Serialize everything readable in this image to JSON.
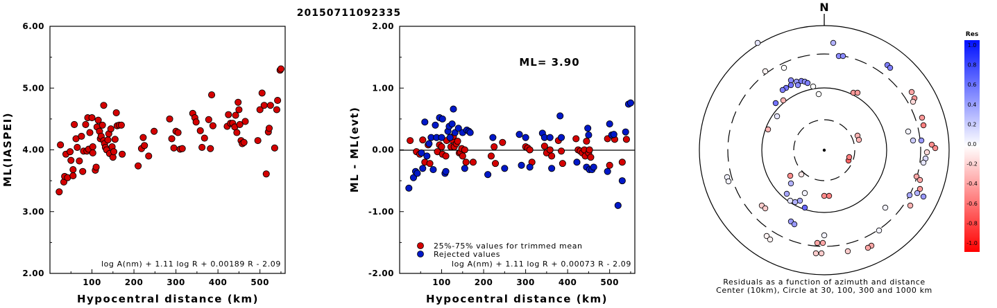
{
  "title": "20150711092335",
  "colors": {
    "red": "#d40000",
    "blue": "#0018c8",
    "frame": "#000000"
  },
  "left_panel": {
    "ylabel": "ML(IASPEI)",
    "xlabel": "Hypocentral distance (km)",
    "formula": "log A(nm) + 1.11 log R + 0.00189 R - 2.09",
    "xticks": [
      "100",
      "200",
      "300",
      "400",
      "500"
    ],
    "yticks": [
      "2.00",
      "3.00",
      "4.00",
      "5.00",
      "6.00"
    ]
  },
  "middle_panel": {
    "ylabel": "ML - ML(evt)",
    "xlabel": "Hypocentral distance (km)",
    "ml_text": "ML= 3.90",
    "legend_kept": "25%-75% values for trimmed mean",
    "legend_rejected": "Rejected values",
    "formula": "log A(nm) + 1.11 log R + 0.00073 R - 2.09",
    "xticks": [
      "100",
      "200",
      "300",
      "400",
      "500"
    ],
    "yticks": [
      "-2.00",
      "-1.00",
      "0.00",
      "1.00",
      "2.00"
    ]
  },
  "polar_panel": {
    "north_label": "N",
    "caption_line1": "Residuals as a function of azimuth and distance",
    "caption_line2": "Center (10km), Circle at 30, 100, 300 and 1000 km"
  },
  "colorbar": {
    "title": "Res",
    "labels": [
      "1.0",
      "0.8",
      "0.6",
      "0.4",
      "0.2",
      "0.0",
      "-0.2",
      "-0.4",
      "-0.6",
      "-0.8",
      "-1.0"
    ]
  },
  "chart_data": [
    {
      "type": "scatter",
      "title": "20150711092335",
      "xlabel": "Hypocentral distance (km)",
      "ylabel": "ML(IASPEI)",
      "xlim": [
        0,
        560
      ],
      "ylim": [
        2.0,
        6.0
      ],
      "series": [
        {
          "color": "#d40000",
          "points": [
            [
              22,
              3.32
            ],
            [
              25,
              4.08
            ],
            [
              33,
              3.48
            ],
            [
              35,
              3.57
            ],
            [
              38,
              3.93
            ],
            [
              42,
              3.55
            ],
            [
              48,
              3.97
            ],
            [
              50,
              3.83
            ],
            [
              55,
              3.68
            ],
            [
              55,
              3.58
            ],
            [
              58,
              4.41
            ],
            [
              62,
              4.18
            ],
            [
              65,
              4.04
            ],
            [
              70,
              3.82
            ],
            [
              75,
              4.22
            ],
            [
              78,
              3.65
            ],
            [
              80,
              3.98
            ],
            [
              85,
              4.41
            ],
            [
              88,
              3.98
            ],
            [
              90,
              4.52
            ],
            [
              92,
              4.01
            ],
            [
              95,
              4.28
            ],
            [
              100,
              4.52
            ],
            [
              102,
              4.05
            ],
            [
              102,
              3.95
            ],
            [
              108,
              3.67
            ],
            [
              110,
              3.72
            ],
            [
              112,
              4.37
            ],
            [
              115,
              4.48
            ],
            [
              118,
              4.3
            ],
            [
              120,
              4.18
            ],
            [
              122,
              4.22
            ],
            [
              125,
              4.4
            ],
            [
              128,
              4.72
            ],
            [
              128,
              4.15
            ],
            [
              130,
              4.1
            ],
            [
              132,
              4.04
            ],
            [
              135,
              4.0
            ],
            [
              138,
              4.16
            ],
            [
              140,
              4.26
            ],
            [
              142,
              3.94
            ],
            [
              145,
              4.34
            ],
            [
              148,
              4.05
            ],
            [
              150,
              3.88
            ],
            [
              152,
              3.97
            ],
            [
              155,
              4.17
            ],
            [
              158,
              4.6
            ],
            [
              160,
              4.39
            ],
            [
              165,
              4.4
            ],
            [
              170,
              4.4
            ],
            [
              172,
              3.93
            ],
            [
              210,
              3.74
            ],
            [
              218,
              4.02
            ],
            [
              222,
              4.2
            ],
            [
              225,
              4.07
            ],
            [
              235,
              3.9
            ],
            [
              248,
              4.3
            ],
            [
              285,
              4.5
            ],
            [
              290,
              4.18
            ],
            [
              295,
              4.03
            ],
            [
              300,
              4.3
            ],
            [
              305,
              4.28
            ],
            [
              310,
              4.01
            ],
            [
              315,
              4.02
            ],
            [
              340,
              4.59
            ],
            [
              345,
              4.52
            ],
            [
              348,
              4.45
            ],
            [
              358,
              4.31
            ],
            [
              362,
              4.04
            ],
            [
              368,
              4.19
            ],
            [
              378,
              4.49
            ],
            [
              382,
              4.02
            ],
            [
              385,
              4.89
            ],
            [
              388,
              4.39
            ],
            [
              422,
              4.38
            ],
            [
              425,
              4.57
            ],
            [
              430,
              4.43
            ],
            [
              435,
              4.43
            ],
            [
              440,
              4.37
            ],
            [
              442,
              4.56
            ],
            [
              445,
              4.28
            ],
            [
              448,
              4.77
            ],
            [
              450,
              4.65
            ],
            [
              452,
              4.41
            ],
            [
              455,
              4.15
            ],
            [
              458,
              4.1
            ],
            [
              462,
              4.12
            ],
            [
              465,
              4.46
            ],
            [
              495,
              4.15
            ],
            [
              500,
              4.65
            ],
            [
              505,
              4.92
            ],
            [
              510,
              4.72
            ],
            [
              515,
              3.61
            ],
            [
              520,
              4.29
            ],
            [
              522,
              4.35
            ],
            [
              525,
              4.72
            ],
            [
              535,
              4.03
            ],
            [
              540,
              4.65
            ],
            [
              542,
              4.8
            ],
            [
              548,
              5.29
            ],
            [
              550,
              5.31
            ]
          ]
        }
      ]
    },
    {
      "type": "scatter",
      "xlabel": "Hypocentral distance (km)",
      "ylabel": "ML - ML(evt)",
      "xlim": [
        0,
        560
      ],
      "ylim": [
        -2.0,
        2.0
      ],
      "series": [
        {
          "name": "25%-75% values for trimmed mean",
          "color": "#d40000",
          "points": [
            [
              25,
              0.15
            ],
            [
              40,
              -0.03
            ],
            [
              48,
              -0.07
            ],
            [
              55,
              0.16
            ],
            [
              60,
              -0.2
            ],
            [
              68,
              0.08
            ],
            [
              72,
              -0.22
            ],
            [
              90,
              -0.03
            ],
            [
              95,
              0.08
            ],
            [
              100,
              0.05
            ],
            [
              102,
              -0.07
            ],
            [
              110,
              -0.1
            ],
            [
              112,
              0.15
            ],
            [
              122,
              0.05
            ],
            [
              125,
              0.16
            ],
            [
              128,
              0.22
            ],
            [
              130,
              0.05
            ],
            [
              135,
              0.1
            ],
            [
              138,
              0.14
            ],
            [
              142,
              -0.05
            ],
            [
              145,
              -0.04
            ],
            [
              148,
              0.02
            ],
            [
              150,
              -0.1
            ],
            [
              155,
              0.0
            ],
            [
              158,
              -0.2
            ],
            [
              175,
              -0.2
            ],
            [
              218,
              -0.1
            ],
            [
              225,
              0.05
            ],
            [
              228,
              -0.22
            ],
            [
              245,
              0.12
            ],
            [
              300,
              0.05
            ],
            [
              305,
              0.03
            ],
            [
              310,
              0.0
            ],
            [
              315,
              -0.2
            ],
            [
              345,
              0.06
            ],
            [
              350,
              -0.05
            ],
            [
              358,
              0.0
            ],
            [
              362,
              -0.1
            ],
            [
              378,
              0.15
            ],
            [
              385,
              -0.02
            ],
            [
              388,
              -0.22
            ],
            [
              420,
              0.18
            ],
            [
              425,
              0.0
            ],
            [
              430,
              -0.02
            ],
            [
              435,
              -0.05
            ],
            [
              440,
              0.0
            ],
            [
              442,
              -0.1
            ],
            [
              445,
              0.14
            ],
            [
              450,
              -0.05
            ],
            [
              452,
              0.0
            ],
            [
              455,
              -0.12
            ],
            [
              495,
              0.18
            ],
            [
              500,
              -0.25
            ],
            [
              512,
              0.17
            ],
            [
              530,
              -0.2
            ],
            [
              540,
              0.17
            ]
          ]
        },
        {
          "name": "Rejected values",
          "color": "#0018c8",
          "points": [
            [
              22,
              -0.62
            ],
            [
              33,
              -0.45
            ],
            [
              38,
              -0.35
            ],
            [
              42,
              -0.38
            ],
            [
              52,
              -0.05
            ],
            [
              55,
              -0.3
            ],
            [
              60,
              0.45
            ],
            [
              65,
              -0.1
            ],
            [
              70,
              0.1
            ],
            [
              75,
              0.2
            ],
            [
              80,
              -0.32
            ],
            [
              85,
              0.4
            ],
            [
              88,
              0.2
            ],
            [
              95,
              0.52
            ],
            [
              100,
              0.2
            ],
            [
              102,
              0.5
            ],
            [
              108,
              -0.38
            ],
            [
              110,
              -0.35
            ],
            [
              115,
              0.3
            ],
            [
              118,
              0.38
            ],
            [
              120,
              0.2
            ],
            [
              125,
              0.42
            ],
            [
              128,
              0.66
            ],
            [
              132,
              0.28
            ],
            [
              140,
              0.35
            ],
            [
              150,
              0.28
            ],
            [
              155,
              -0.3
            ],
            [
              160,
              0.32
            ],
            [
              165,
              0.3
            ],
            [
              168,
              0.28
            ],
            [
              210,
              -0.4
            ],
            [
              222,
              0.2
            ],
            [
              250,
              -0.3
            ],
            [
              285,
              0.25
            ],
            [
              290,
              -0.25
            ],
            [
              300,
              0.2
            ],
            [
              310,
              -0.28
            ],
            [
              340,
              0.27
            ],
            [
              345,
              0.2
            ],
            [
              358,
              0.2
            ],
            [
              362,
              -0.3
            ],
            [
              382,
              0.55
            ],
            [
              385,
              0.2
            ],
            [
              422,
              -0.2
            ],
            [
              445,
              -0.28
            ],
            [
              448,
              0.35
            ],
            [
              450,
              0.24
            ],
            [
              452,
              -0.32
            ],
            [
              458,
              -0.32
            ],
            [
              462,
              -0.28
            ],
            [
              495,
              -0.35
            ],
            [
              500,
              0.42
            ],
            [
              505,
              0.24
            ],
            [
              510,
              0.25
            ],
            [
              520,
              -0.9
            ],
            [
              530,
              -0.5
            ],
            [
              538,
              0.29
            ],
            [
              545,
              0.74
            ],
            [
              550,
              0.76
            ]
          ]
        }
      ]
    }
  ]
}
